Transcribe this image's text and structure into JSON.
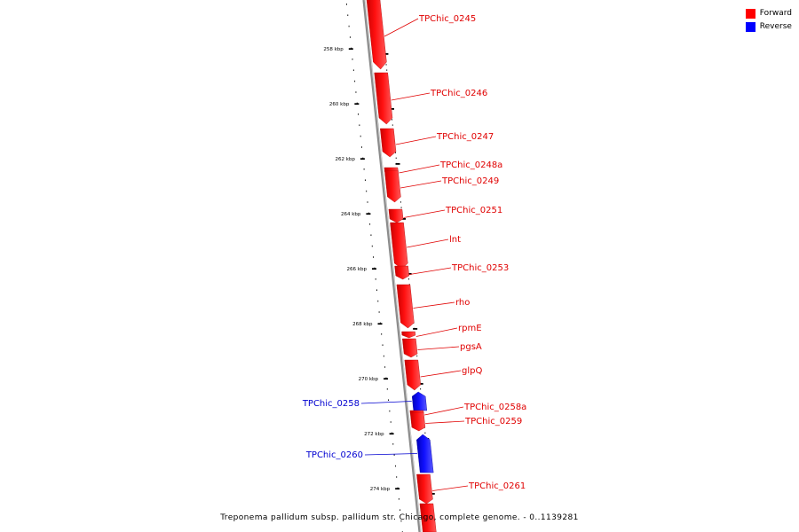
{
  "legend": {
    "forward_label": "Forward",
    "reverse_label": "Reverse",
    "forward_color": "#ff0000",
    "reverse_color": "#0000ff"
  },
  "caption": "Treponema pallidum subsp. pallidum str. Chicago, complete genome. - 0..1139281",
  "ticks": [
    {
      "label": "258 kbp",
      "kbp": 258
    },
    {
      "label": "260 kbp",
      "kbp": 260
    },
    {
      "label": "262 kbp",
      "kbp": 262
    },
    {
      "label": "264 kbp",
      "kbp": 264
    },
    {
      "label": "266 kbp",
      "kbp": 266
    },
    {
      "label": "268 kbp",
      "kbp": 268
    },
    {
      "label": "270 kbp",
      "kbp": 270
    },
    {
      "label": "272 kbp",
      "kbp": 272
    },
    {
      "label": "274 kbp",
      "kbp": 274
    }
  ],
  "genes": [
    {
      "name": "TPChic_0245",
      "strand": "forward"
    },
    {
      "name": "TPChic_0246",
      "strand": "forward"
    },
    {
      "name": "TPChic_0247",
      "strand": "forward"
    },
    {
      "name": "TPChic_0248a",
      "strand": "forward"
    },
    {
      "name": "TPChic_0249",
      "strand": "forward"
    },
    {
      "name": "TPChic_0251",
      "strand": "forward"
    },
    {
      "name": "lnt",
      "strand": "forward"
    },
    {
      "name": "TPChic_0253",
      "strand": "forward"
    },
    {
      "name": "rho",
      "strand": "forward"
    },
    {
      "name": "rpmE",
      "strand": "forward"
    },
    {
      "name": "pgsA",
      "strand": "forward"
    },
    {
      "name": "glpQ",
      "strand": "forward"
    },
    {
      "name": "TPChic_0258",
      "strand": "reverse"
    },
    {
      "name": "TPChic_0258a",
      "strand": "forward"
    },
    {
      "name": "TPChic_0259",
      "strand": "forward"
    },
    {
      "name": "TPChic_0260",
      "strand": "reverse"
    },
    {
      "name": "TPChic_0261",
      "strand": "forward"
    }
  ]
}
